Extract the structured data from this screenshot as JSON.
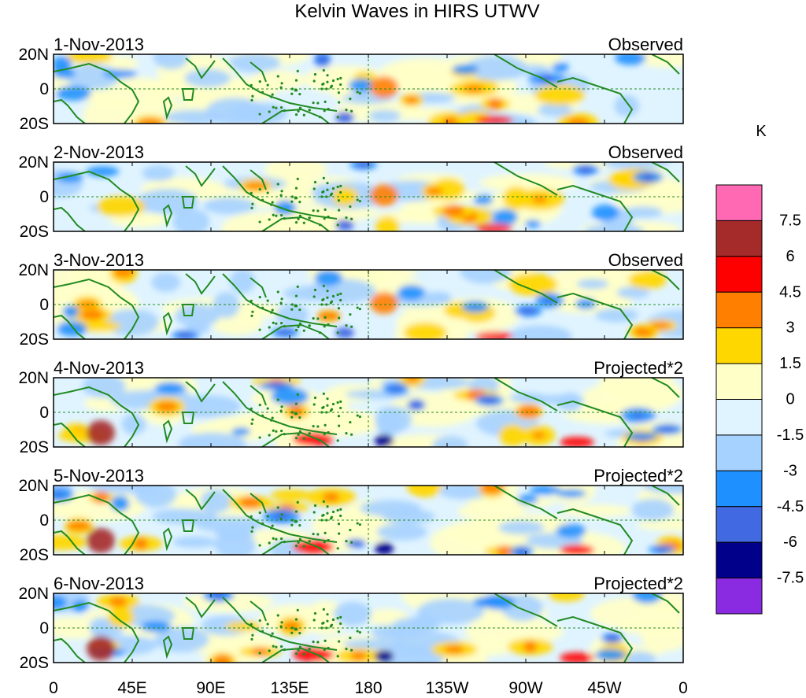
{
  "title": "Kelvin Waves in HIRS UTWV",
  "panels": [
    {
      "date": "1-Nov-2013",
      "label": "Observed"
    },
    {
      "date": "2-Nov-2013",
      "label": "Observed"
    },
    {
      "date": "3-Nov-2013",
      "label": "Observed"
    },
    {
      "date": "4-Nov-2013",
      "label": "Projected*2"
    },
    {
      "date": "5-Nov-2013",
      "label": "Projected*2"
    },
    {
      "date": "6-Nov-2013",
      "label": "Projected*2"
    }
  ],
  "lat_labels": [
    "20N",
    "0",
    "20S"
  ],
  "lon_labels": [
    "0",
    "45E",
    "90E",
    "135E",
    "180",
    "135W",
    "90W",
    "45W",
    "0"
  ],
  "colorbar": {
    "units": "K",
    "labels": [
      "7.5",
      "6",
      "4.5",
      "3",
      "1.5",
      "0",
      "-1.5",
      "-3",
      "-4.5",
      "-6",
      "-7.5"
    ],
    "colors_top_to_bottom": [
      "#ff69b4",
      "#a52a2a",
      "#ff0000",
      "#ff7f00",
      "#ffd700",
      "#ffffc8",
      "#e0f4ff",
      "#a6d2ff",
      "#1e90ff",
      "#4169e1",
      "#00008b",
      "#8a2be2"
    ]
  },
  "colors": {
    "coast": "#228b22",
    "background_field": "#ffffff"
  }
}
